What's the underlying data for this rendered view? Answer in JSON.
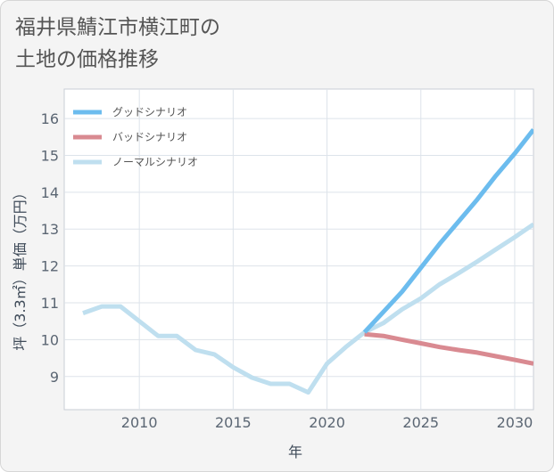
{
  "title_line1": "福井県鯖江市横江町の",
  "title_line2": "土地の価格推移",
  "chart_data": {
    "type": "line",
    "xlabel": "年",
    "ylabel": "坪（3.3㎡）単価（万円）",
    "xlim": [
      2006,
      2031
    ],
    "ylim": [
      8.1,
      16.8
    ],
    "x_ticks": [
      2010,
      2015,
      2020,
      2025,
      2030
    ],
    "y_ticks": [
      9,
      10,
      11,
      12,
      13,
      14,
      15,
      16
    ],
    "grid": true,
    "legend_position": "top-left",
    "series": [
      {
        "name": "グッドシナリオ",
        "color": "#6cbcee",
        "points": [
          [
            2022,
            10.2
          ],
          [
            2023,
            10.75
          ],
          [
            2024,
            11.3
          ],
          [
            2025,
            11.95
          ],
          [
            2026,
            12.6
          ],
          [
            2027,
            13.2
          ],
          [
            2028,
            13.8
          ],
          [
            2029,
            14.45
          ],
          [
            2030,
            15.05
          ],
          [
            2031,
            15.7
          ]
        ]
      },
      {
        "name": "バッドシナリオ",
        "color": "#d98a91",
        "points": [
          [
            2022,
            10.15
          ],
          [
            2023,
            10.1
          ],
          [
            2024,
            10.0
          ],
          [
            2025,
            9.9
          ],
          [
            2026,
            9.8
          ],
          [
            2027,
            9.72
          ],
          [
            2028,
            9.65
          ],
          [
            2029,
            9.55
          ],
          [
            2030,
            9.45
          ],
          [
            2031,
            9.35
          ]
        ]
      },
      {
        "name": "ノーマルシナリオ",
        "color": "#bfdfef",
        "points": [
          [
            2007,
            10.72
          ],
          [
            2008,
            10.9
          ],
          [
            2009,
            10.9
          ],
          [
            2010,
            10.5
          ],
          [
            2011,
            10.1
          ],
          [
            2012,
            10.1
          ],
          [
            2013,
            9.72
          ],
          [
            2014,
            9.6
          ],
          [
            2015,
            9.25
          ],
          [
            2016,
            8.97
          ],
          [
            2017,
            8.8
          ],
          [
            2018,
            8.8
          ],
          [
            2019,
            8.57
          ],
          [
            2020,
            9.35
          ],
          [
            2021,
            9.8
          ],
          [
            2022,
            10.2
          ],
          [
            2023,
            10.45
          ],
          [
            2024,
            10.82
          ],
          [
            2025,
            11.12
          ],
          [
            2026,
            11.5
          ],
          [
            2027,
            11.8
          ],
          [
            2028,
            12.12
          ],
          [
            2029,
            12.45
          ],
          [
            2030,
            12.78
          ],
          [
            2031,
            13.13
          ]
        ]
      }
    ]
  }
}
